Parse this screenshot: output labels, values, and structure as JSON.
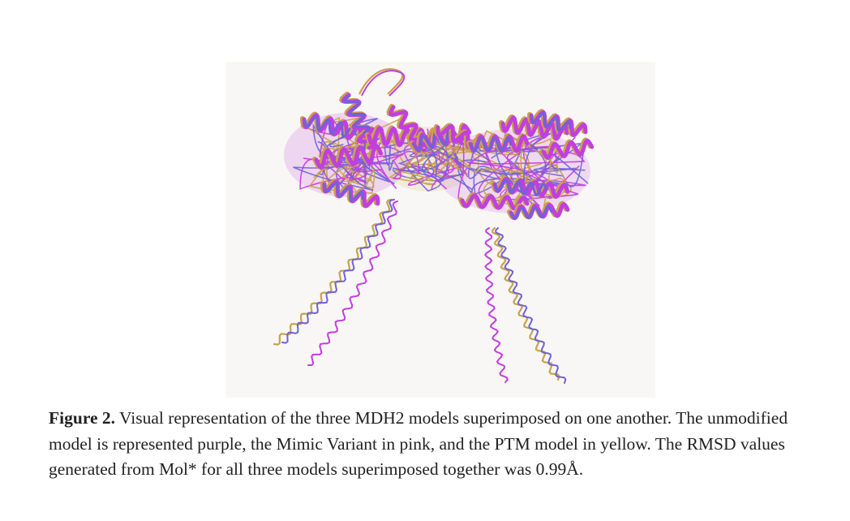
{
  "figure": {
    "models": [
      {
        "name": "unmodified",
        "color_name": "purple",
        "color": "#6f63d8"
      },
      {
        "name": "Mimic Variant",
        "color_name": "pink",
        "color": "#c23ee0"
      },
      {
        "name": "PTM",
        "color_name": "yellow",
        "color": "#c9a24a"
      }
    ],
    "background": "#f8f7f5"
  },
  "caption": {
    "label": "Figure 2.",
    "text": " Visual representation of the three MDH2 models superimposed on one another. The unmodified model is represented purple, the Mimic Variant in pink, and the PTM model in yellow. The RMSD values generated from Mol* for all three models superimposed together was 0.99Å."
  }
}
